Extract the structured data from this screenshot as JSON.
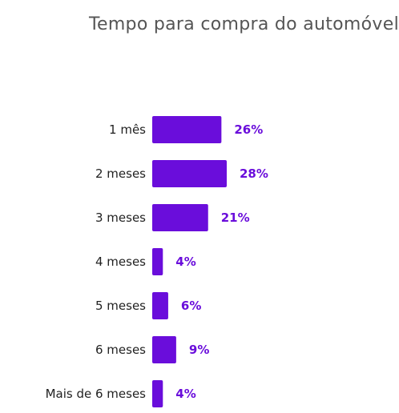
{
  "chart_data": {
    "type": "bar",
    "orientation": "horizontal",
    "title": "Tempo para compra do automóvel",
    "categories": [
      "1 mês",
      "2 meses",
      "3 meses",
      "4 meses",
      "5 meses",
      "6 meses",
      "Mais de 6 meses"
    ],
    "values": [
      26,
      28,
      21,
      4,
      6,
      9,
      4
    ],
    "data_labels": [
      "26%",
      "28%",
      "21%",
      "4%",
      "6%",
      "9%",
      "4%"
    ],
    "unit": "%",
    "xlabel": "",
    "ylabel": "",
    "xlim": [
      0,
      28
    ],
    "grid": false,
    "legend": "none",
    "colors": {
      "bar": "#6a0ddb",
      "value_label": "#6a0ddb",
      "category_label": "#222222",
      "title": "#555555"
    }
  }
}
